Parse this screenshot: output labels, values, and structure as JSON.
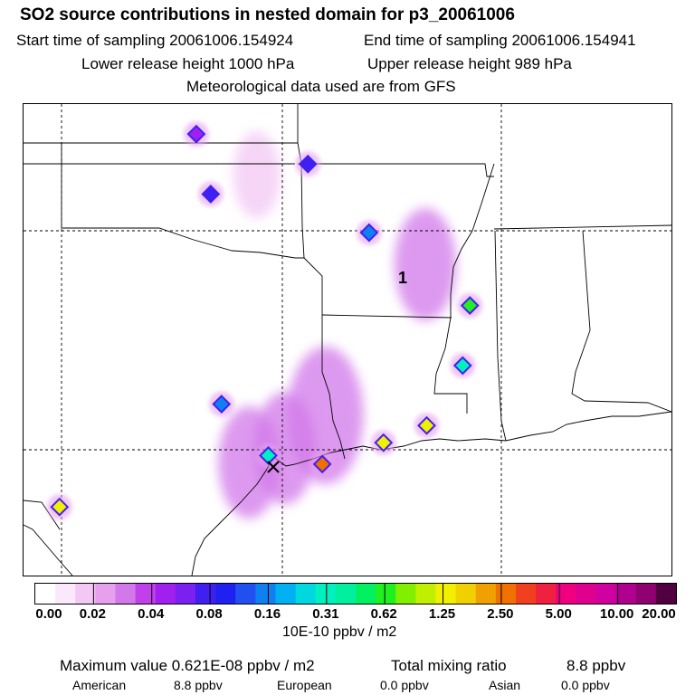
{
  "header": {
    "title": "SO2 source contributions in nested domain for p3_20061006",
    "start": "Start time of sampling 20061006.154924",
    "end": "End time of sampling 20061006.154941",
    "lower": "Lower release height 1000 hPa",
    "upper": "Upper release height  989 hPa",
    "met": "Meteorological data used are from GFS"
  },
  "chart_data": {
    "type": "heatmap",
    "title": "SO2 source contributions in nested domain for p3_20061006",
    "colorbar_units": "10E-10 ppbv / m2",
    "colorbar_ticks": [
      "0.00",
      "0.02",
      "0.04",
      "0.08",
      "0.16",
      "0.31",
      "0.62",
      "1.25",
      "2.50",
      "5.00",
      "10.00",
      "20.00"
    ],
    "colorbar_colors": [
      "#ffffff",
      "#fbe8fb",
      "#f3c8f5",
      "#e6a0ee",
      "#d278ea",
      "#c040ea",
      "#a020f0",
      "#7a20f0",
      "#4020f0",
      "#2020f0",
      "#2050f0",
      "#1080f0",
      "#00b0f0",
      "#00d8e0",
      "#00f0c0",
      "#00f0a0",
      "#00f060",
      "#20f020",
      "#80f000",
      "#c0f000",
      "#f0f000",
      "#f0d000",
      "#f0a000",
      "#f07000",
      "#f04020",
      "#f02040",
      "#f00080",
      "#e00090",
      "#d000a0",
      "#b00090",
      "#900070",
      "#500040"
    ],
    "marker_label": "1",
    "plumes": [
      {
        "cx": 0.466,
        "cy": 0.66,
        "level": 4
      },
      {
        "cx": 0.403,
        "cy": 0.73,
        "level": 3
      },
      {
        "cx": 0.348,
        "cy": 0.76,
        "level": 3
      },
      {
        "cx": 0.62,
        "cy": 0.34,
        "level": 3
      },
      {
        "cx": 0.36,
        "cy": 0.15,
        "level": 2
      }
    ],
    "hotspots": [
      {
        "lon": -97.2,
        "lat": 37.3,
        "value": 0.04
      },
      {
        "lon": -94.1,
        "lat": 36.6,
        "value": 0.08
      },
      {
        "lon": -96.8,
        "lat": 35.9,
        "value": 0.12
      },
      {
        "lon": -92.4,
        "lat": 35.0,
        "value": 0.16
      },
      {
        "lon": -89.6,
        "lat": 33.3,
        "value": 0.62
      },
      {
        "lon": -89.8,
        "lat": 31.9,
        "value": 0.31
      },
      {
        "lon": -90.8,
        "lat": 30.5,
        "value": 1.25
      },
      {
        "lon": -93.7,
        "lat": 29.6,
        "value": 2.5
      },
      {
        "lon": -92.0,
        "lat": 30.1,
        "value": 1.25
      },
      {
        "lon": -95.2,
        "lat": 29.8,
        "value": 0.31
      },
      {
        "lon": -101.0,
        "lat": 28.6,
        "value": 1.25
      },
      {
        "lon": -96.5,
        "lat": 31.0,
        "value": 0.16
      }
    ]
  },
  "stats": {
    "max_label": "Maximum value  0.621E-08 ppbv / m2",
    "total_label": "Total mixing ratio",
    "total_value": "8.8 ppbv",
    "american_label": "American",
    "american_value": "8.8 ppbv",
    "european_label": "European",
    "european_value": "0.0 ppbv",
    "asian_label": "Asian",
    "asian_value": "0.0 ppbv"
  }
}
